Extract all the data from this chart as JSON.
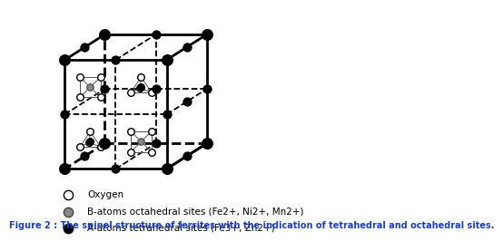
{
  "title": "Figure 2 : The spinel structure of ferrites with the indication of tetrahedral and octahedral sites.",
  "legend_items": [
    {
      "label": "Oxygen",
      "color": "white",
      "edge": "black"
    },
    {
      "label": "B-atoms octahedral sites (Fe2+, Ni2+, Mn2+)",
      "color": "#888888",
      "edge": "#444444"
    },
    {
      "label": "A-atoms tetrahedral sites (Fe3+, Zn2+)",
      "color": "black",
      "edge": "black"
    }
  ],
  "bg_color": "white",
  "title_color": "#1a3fc4",
  "title_fontsize": 7.0,
  "legend_fontsize": 7.5
}
